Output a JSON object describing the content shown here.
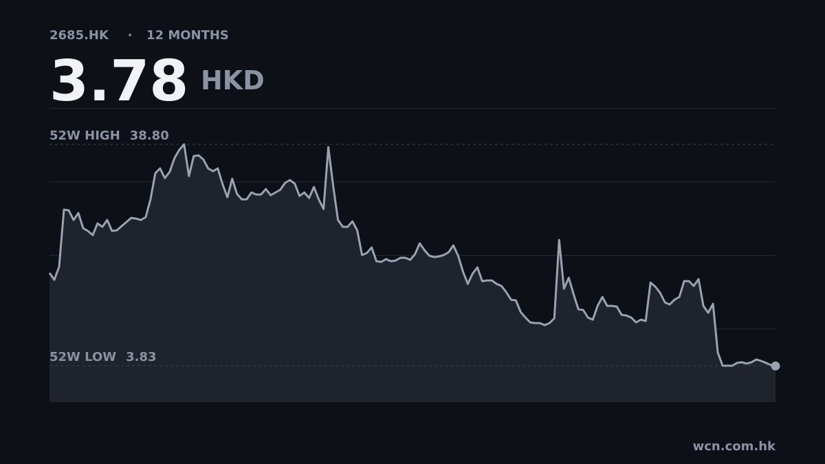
{
  "header": {
    "symbol": "2685.HK",
    "separator": "·",
    "period": "12 MONTHS",
    "price": "3.78",
    "currency": "HKD"
  },
  "chart_data": {
    "type": "line",
    "color": "#9aa3b2",
    "area_color": "#1f232b",
    "ylim": [
      -1.93,
      44.56
    ],
    "annotations": [
      {
        "label": "52W HIGH",
        "value": 38.8,
        "value_label": "38.80"
      },
      {
        "label": "52W LOW",
        "value": 3.83
      }
    ],
    "values": [
      18.49,
      17.41,
      19.47,
      28.48,
      28.37,
      26.85,
      27.94,
      25.55,
      25.12,
      24.46,
      26.31,
      25.77,
      26.85,
      25.12,
      25.22,
      25.88,
      26.53,
      27.18,
      27.07,
      26.85,
      27.29,
      30.11,
      34.24,
      35.0,
      33.48,
      34.46,
      36.63,
      37.93,
      38.8,
      33.8,
      36.95,
      37.06,
      36.41,
      35.0,
      34.56,
      35.0,
      32.5,
      30.44,
      33.37,
      30.98,
      30.11,
      30.11,
      31.2,
      30.87,
      30.87,
      31.74,
      30.76,
      31.2,
      31.63,
      32.72,
      33.15,
      32.61,
      30.65,
      31.2,
      30.33,
      32.07,
      30.11,
      28.59,
      38.37,
      32.28,
      26.85,
      25.77,
      25.77,
      26.64,
      25.22,
      21.32,
      21.64,
      22.51,
      20.34,
      20.23,
      20.66,
      20.34,
      20.45,
      20.88,
      20.88,
      20.56,
      21.42,
      23.16,
      22.08,
      21.21,
      20.99,
      21.1,
      21.32,
      21.75,
      22.84,
      21.21,
      18.71,
      16.75,
      18.38,
      19.36,
      17.19,
      17.3,
      17.3,
      16.75,
      16.43,
      15.45,
      14.26,
      14.15,
      12.3,
      11.43,
      10.67,
      10.56,
      10.56,
      10.24,
      10.56,
      11.32,
      23.7,
      15.99,
      17.73,
      15.13,
      12.74,
      12.63,
      11.43,
      11.11,
      13.28,
      14.69,
      13.28,
      13.28,
      13.17,
      11.87,
      11.76,
      11.43,
      10.67,
      11.11,
      10.89,
      16.97,
      16.32,
      15.34,
      13.82,
      13.5,
      14.26,
      14.69,
      17.19,
      17.19,
      16.43,
      17.51,
      13.28,
      12.19,
      13.6,
      5.89,
      3.83,
      3.83,
      3.83,
      4.27,
      4.37,
      4.16,
      4.37,
      4.81,
      4.59,
      4.27,
      3.94,
      3.78
    ]
  },
  "footer": {
    "source": "wcn.com.hk"
  }
}
